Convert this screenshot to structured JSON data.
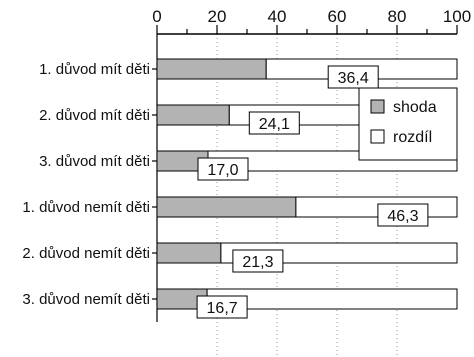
{
  "chart_data": {
    "type": "bar",
    "orientation": "horizontal",
    "stacked": true,
    "categories": [
      "1. důvod mít děti",
      "2. důvod mít děti",
      "3. důvod mít děti",
      "1. důvod nemít děti",
      "2. důvod nemít děti",
      "3. důvod nemít děti"
    ],
    "series": [
      {
        "name": "shoda",
        "values": [
          36.4,
          24.1,
          17.0,
          46.3,
          21.3,
          16.7
        ],
        "color": "#b3b3b3"
      },
      {
        "name": "rozdíl",
        "values": [
          63.6,
          75.9,
          83.0,
          53.7,
          78.7,
          83.3
        ],
        "color": "#ffffff"
      }
    ],
    "value_labels": [
      "36,4",
      "24,1",
      "17,0",
      "46,3",
      "21,3",
      "16,7"
    ],
    "xlim": [
      0,
      100
    ],
    "xticks": [
      0,
      20,
      40,
      60,
      80,
      100
    ],
    "xtick_labels": [
      "0",
      "20",
      "40",
      "60",
      "80",
      "100"
    ],
    "x_axis_position": "top",
    "grid": "vertical-dotted",
    "legend_position": "right"
  }
}
